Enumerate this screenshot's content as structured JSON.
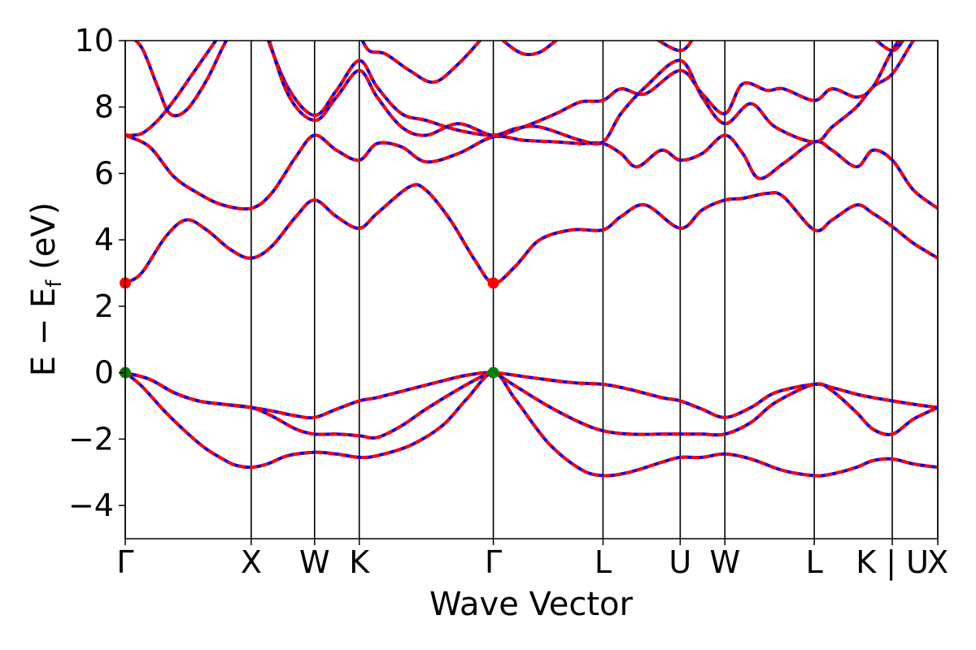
{
  "chart_data": {
    "type": "line",
    "title": "",
    "xlabel": "Wave Vector",
    "ylabel": "E − E_f (eV)",
    "ylabel_parts": {
      "main": "E − E",
      "sub": "f",
      "unit": " (eV)"
    },
    "ylim": [
      -5,
      10
    ],
    "yticks": [
      "−4",
      "−2",
      "0",
      "2",
      "4",
      "6",
      "8",
      "10"
    ],
    "ytick_values": [
      -4,
      -2,
      0,
      2,
      4,
      6,
      8,
      10
    ],
    "xlim": [
      0,
      1
    ],
    "kpoints": [
      {
        "label": "Γ",
        "x": 0.0
      },
      {
        "label": "X",
        "x": 0.155
      },
      {
        "label": "W",
        "x": 0.233
      },
      {
        "label": "K",
        "x": 0.288
      },
      {
        "label": "Γ",
        "x": 0.453
      },
      {
        "label": "L",
        "x": 0.588
      },
      {
        "label": "U",
        "x": 0.683
      },
      {
        "label": "W",
        "x": 0.738
      },
      {
        "label": "L",
        "x": 0.848
      },
      {
        "label": "K | U",
        "x": 0.944
      },
      {
        "label": "X",
        "x": 1.0
      }
    ],
    "grid": false,
    "legend": false,
    "colors": {
      "band_solid": "#ff0000",
      "band_dashed": "#0000ff",
      "cbm": "#ff0000",
      "vbm": "#008000"
    },
    "series": [
      {
        "x": [
          0,
          0.02,
          0.05,
          0.08,
          0.1,
          0.12,
          0.135,
          0.155,
          0.175,
          0.2,
          0.233,
          0.26,
          0.288,
          0.31,
          0.35,
          0.39,
          0.42,
          0.453,
          0.48,
          0.52,
          0.56,
          0.588,
          0.62,
          0.66,
          0.683,
          0.71,
          0.738,
          0.77,
          0.81,
          0.848,
          0.87,
          0.9,
          0.92,
          0.944,
          0.97,
          1.0
        ],
        "y": [
          0,
          -0.4,
          -1.2,
          -1.9,
          -2.3,
          -2.6,
          -2.78,
          -2.85,
          -2.75,
          -2.5,
          -2.4,
          -2.45,
          -2.55,
          -2.5,
          -2.2,
          -1.6,
          -0.8,
          0,
          -0.8,
          -2.1,
          -2.9,
          -3.1,
          -3.0,
          -2.7,
          -2.55,
          -2.55,
          -2.45,
          -2.6,
          -2.95,
          -3.1,
          -3.05,
          -2.85,
          -2.65,
          -2.6,
          -2.75,
          -2.85
        ]
      },
      {
        "x": [
          0,
          0.03,
          0.06,
          0.09,
          0.12,
          0.155,
          0.18,
          0.21,
          0.233,
          0.26,
          0.288,
          0.31,
          0.35,
          0.39,
          0.42,
          0.453,
          0.5,
          0.55,
          0.588,
          0.62,
          0.66,
          0.683,
          0.71,
          0.738,
          0.77,
          0.8,
          0.848,
          0.87,
          0.9,
          0.92,
          0.944,
          0.97,
          1.0
        ],
        "y": [
          0,
          -0.2,
          -0.6,
          -0.85,
          -0.95,
          -1.05,
          -1.15,
          -1.3,
          -1.35,
          -1.1,
          -0.85,
          -0.75,
          -0.5,
          -0.25,
          -0.08,
          0,
          -0.15,
          -0.3,
          -0.35,
          -0.5,
          -0.75,
          -0.85,
          -1.1,
          -1.35,
          -1.05,
          -0.6,
          -0.35,
          -0.45,
          -0.65,
          -0.75,
          -0.85,
          -0.95,
          -1.05
        ]
      },
      {
        "x": [
          0,
          0.03,
          0.06,
          0.09,
          0.12,
          0.155,
          0.18,
          0.21,
          0.233,
          0.26,
          0.288,
          0.31,
          0.34,
          0.37,
          0.41,
          0.44,
          0.453,
          0.48,
          0.52,
          0.56,
          0.588,
          0.62,
          0.66,
          0.683,
          0.71,
          0.738,
          0.77,
          0.8,
          0.848,
          0.87,
          0.9,
          0.92,
          0.944,
          0.97,
          1.0
        ],
        "y": [
          0,
          -0.2,
          -0.6,
          -0.85,
          -0.95,
          -1.05,
          -1.3,
          -1.7,
          -1.85,
          -1.85,
          -1.9,
          -1.95,
          -1.6,
          -1.1,
          -0.5,
          -0.1,
          0,
          -0.4,
          -1.0,
          -1.5,
          -1.75,
          -1.85,
          -1.85,
          -1.85,
          -1.85,
          -1.85,
          -1.5,
          -0.9,
          -0.35,
          -0.55,
          -1.2,
          -1.7,
          -1.85,
          -1.4,
          -1.05
        ]
      },
      {
        "x": [
          0,
          0.02,
          0.05,
          0.075,
          0.1,
          0.13,
          0.155,
          0.18,
          0.21,
          0.233,
          0.26,
          0.288,
          0.31,
          0.35,
          0.37,
          0.4,
          0.43,
          0.453,
          0.48,
          0.51,
          0.55,
          0.588,
          0.61,
          0.64,
          0.683,
          0.71,
          0.738,
          0.76,
          0.79,
          0.81,
          0.848,
          0.87,
          0.9,
          0.92,
          0.944,
          0.97,
          1.0
        ],
        "y": [
          2.7,
          3.0,
          4.1,
          4.6,
          4.3,
          3.7,
          3.45,
          3.8,
          4.7,
          5.2,
          4.7,
          4.35,
          4.8,
          5.6,
          5.5,
          4.6,
          3.4,
          2.7,
          3.2,
          4.0,
          4.3,
          4.3,
          4.7,
          5.05,
          4.35,
          4.9,
          5.2,
          5.25,
          5.4,
          5.3,
          4.3,
          4.6,
          5.05,
          4.8,
          4.4,
          3.9,
          3.45
        ]
      },
      {
        "x": [
          0,
          0.03,
          0.06,
          0.09,
          0.12,
          0.155,
          0.18,
          0.21,
          0.233,
          0.26,
          0.288,
          0.31,
          0.34,
          0.37,
          0.41,
          0.453,
          0.49,
          0.53,
          0.56,
          0.588,
          0.61,
          0.63,
          0.66,
          0.683,
          0.71,
          0.738,
          0.76,
          0.78,
          0.81,
          0.848,
          0.87,
          0.9,
          0.92,
          0.944,
          0.97,
          1.0
        ],
        "y": [
          7.15,
          6.8,
          5.9,
          5.4,
          5.05,
          4.95,
          5.4,
          6.5,
          7.15,
          6.7,
          6.4,
          6.9,
          6.8,
          6.35,
          6.6,
          7.1,
          7.0,
          6.95,
          6.9,
          6.9,
          6.6,
          6.2,
          6.7,
          6.4,
          6.6,
          7.15,
          6.6,
          5.85,
          6.3,
          6.95,
          6.7,
          6.2,
          6.7,
          6.4,
          5.5,
          4.95
        ]
      },
      {
        "x": [
          0,
          0.02,
          0.04,
          0.06,
          0.08,
          0.1,
          0.12,
          0.14,
          0.155
        ],
        "y": [
          7.15,
          7.2,
          7.6,
          8.2,
          8.9,
          9.6,
          10.3,
          11.0,
          11.4
        ]
      },
      {
        "x": [
          0,
          0.02,
          0.04,
          0.055,
          0.075,
          0.1,
          0.12,
          0.14,
          0.155
        ],
        "y": [
          10.2,
          9.8,
          8.6,
          7.8,
          7.9,
          8.8,
          9.8,
          10.7,
          11.2
        ]
      },
      {
        "x": [
          0.17,
          0.2,
          0.233,
          0.26,
          0.288,
          0.31,
          0.34,
          0.37,
          0.41,
          0.453,
          0.48,
          0.51,
          0.56,
          0.588,
          0.61,
          0.64,
          0.683,
          0.71,
          0.738,
          0.77,
          0.8,
          0.848,
          0.87,
          0.9,
          0.92,
          0.944,
          0.97,
          1.0
        ],
        "y": [
          10.4,
          8.6,
          7.75,
          8.5,
          9.4,
          8.6,
          7.8,
          7.6,
          7.3,
          7.15,
          7.35,
          7.4,
          7.0,
          6.95,
          7.8,
          8.6,
          9.4,
          8.3,
          7.5,
          8.1,
          7.4,
          6.95,
          7.4,
          8.0,
          8.6,
          9.0,
          10.0,
          11.0
        ]
      },
      {
        "x": [
          0.17,
          0.2,
          0.233,
          0.26,
          0.288,
          0.31,
          0.34,
          0.37,
          0.41,
          0.453,
          0.49,
          0.53,
          0.56,
          0.588,
          0.61,
          0.64,
          0.683,
          0.71,
          0.738,
          0.76,
          0.79,
          0.81,
          0.848,
          0.87,
          0.9,
          0.92,
          0.944,
          0.97,
          1.0
        ],
        "y": [
          10.6,
          8.4,
          7.6,
          8.3,
          9.1,
          8.3,
          7.4,
          7.15,
          7.5,
          7.15,
          7.4,
          7.8,
          8.15,
          8.2,
          8.55,
          8.4,
          9.1,
          8.4,
          7.8,
          8.7,
          8.5,
          8.55,
          8.2,
          8.55,
          8.3,
          8.6,
          9.7,
          10.6,
          11.2
        ]
      },
      {
        "x": [
          0.288,
          0.3,
          0.32,
          0.35,
          0.38,
          0.41,
          0.44,
          0.453
        ],
        "y": [
          10.2,
          9.7,
          9.6,
          9.1,
          8.75,
          9.3,
          10.1,
          10.5
        ]
      },
      {
        "x": [
          0.453,
          0.47,
          0.49,
          0.51,
          0.53,
          0.56
        ],
        "y": [
          10.3,
          9.9,
          9.6,
          9.65,
          10.0,
          10.6
        ]
      },
      {
        "x": [
          0.62,
          0.65,
          0.683,
          0.7
        ],
        "y": [
          10.6,
          10.1,
          9.7,
          10.1
        ]
      },
      {
        "x": [
          0.9,
          0.92,
          0.944,
          0.96
        ],
        "y": [
          10.5,
          10.1,
          9.7,
          10.1
        ]
      }
    ],
    "markers": [
      {
        "x": 0.0,
        "y": 2.7,
        "kind": "cbm"
      },
      {
        "x": 0.453,
        "y": 2.7,
        "kind": "cbm"
      },
      {
        "x": 0.0,
        "y": 0.0,
        "kind": "vbm"
      },
      {
        "x": 0.453,
        "y": 0.0,
        "kind": "vbm"
      }
    ]
  }
}
